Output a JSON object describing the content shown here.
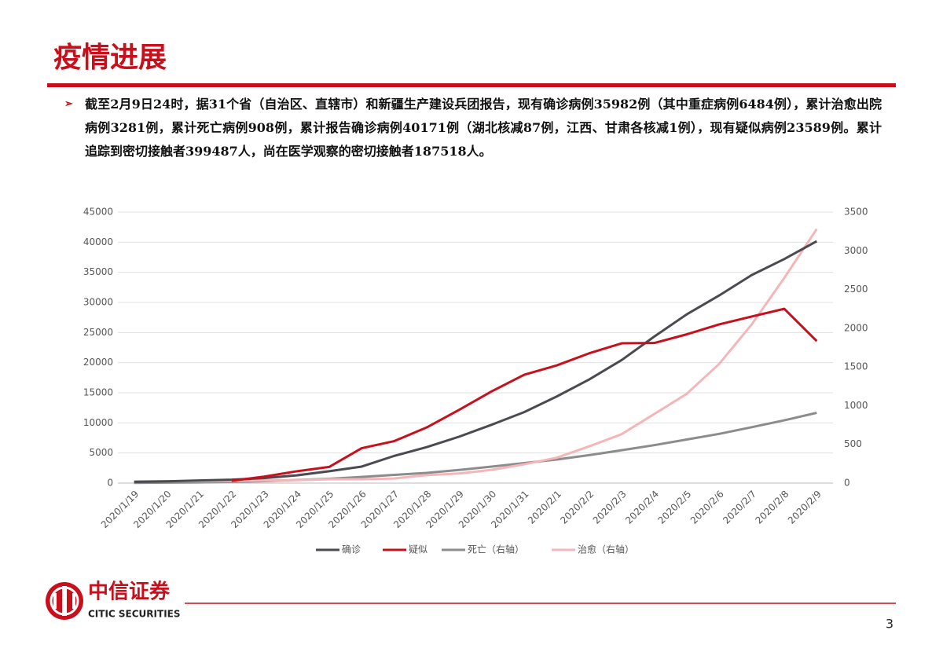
{
  "header": {
    "title": "疫情进展"
  },
  "bullet": "截至2月9日24时，据31个省（自治区、直辖市）和新疆生产建设兵团报告，现有确诊病例35982例（其中重症病例6484例），累计治愈出院病例3281例，累计死亡病例908例，累计报告确诊病例40171例（湖北核减87例，江西、甘肃各核减1例），现有疑似病例23589例。累计追踪到密切接触者399487人，尚在医学观察的密切接触者187518人。",
  "chart_data": {
    "type": "line",
    "categories": [
      "2020/1/19",
      "2020/1/20",
      "2020/1/21",
      "2020/1/22",
      "2020/1/23",
      "2020/1/24",
      "2020/1/25",
      "2020/1/26",
      "2020/1/27",
      "2020/1/28",
      "2020/1/29",
      "2020/1/30",
      "2020/1/31",
      "2020/2/1",
      "2020/2/2",
      "2020/2/3",
      "2020/2/4",
      "2020/2/5",
      "2020/2/6",
      "2020/2/7",
      "2020/2/8",
      "2020/2/9"
    ],
    "series": [
      {
        "name": "确诊",
        "color": "#4a4a50",
        "values": [
          198,
          291,
          440,
          571,
          830,
          1287,
          1975,
          2744,
          4515,
          5974,
          7711,
          9692,
          11791,
          14380,
          17205,
          20438,
          24324,
          28018,
          31161,
          34546,
          37198,
          40171
        ]
      },
      {
        "name": "疑似",
        "color": "#c8101c",
        "values": [
          null,
          null,
          null,
          393,
          1072,
          1965,
          2684,
          5794,
          6973,
          9239,
          12167,
          15238,
          17988,
          19544,
          21558,
          23214,
          23260,
          24702,
          26359,
          27657,
          28942,
          23589
        ]
      },
      {
        "name": "死亡（右轴）",
        "color": "#8c8c8c",
        "axis": "y2",
        "values": [
          3,
          6,
          9,
          17,
          25,
          41,
          56,
          80,
          106,
          132,
          170,
          213,
          259,
          304,
          361,
          425,
          490,
          563,
          636,
          722,
          811,
          908
        ]
      },
      {
        "name": "治愈（右轴）",
        "color": "#f4b6b8",
        "axis": "y2",
        "values": [
          25,
          25,
          25,
          28,
          34,
          38,
          49,
          51,
          60,
          103,
          124,
          171,
          243,
          328,
          475,
          632,
          892,
          1153,
          1540,
          2050,
          2649,
          3281
        ]
      }
    ],
    "ylim": [
      0,
      45000
    ],
    "yticks": [
      0,
      5000,
      10000,
      15000,
      20000,
      25000,
      30000,
      35000,
      40000,
      45000
    ],
    "y2lim": [
      0,
      3500
    ],
    "y2ticks": [
      0,
      500,
      1000,
      1500,
      2000,
      2500,
      3000,
      3500
    ],
    "grid": true,
    "legend": "bottom"
  },
  "footer": {
    "brand": "中信证券",
    "brand_en": "CITIC SECURITIES",
    "page": "3"
  }
}
